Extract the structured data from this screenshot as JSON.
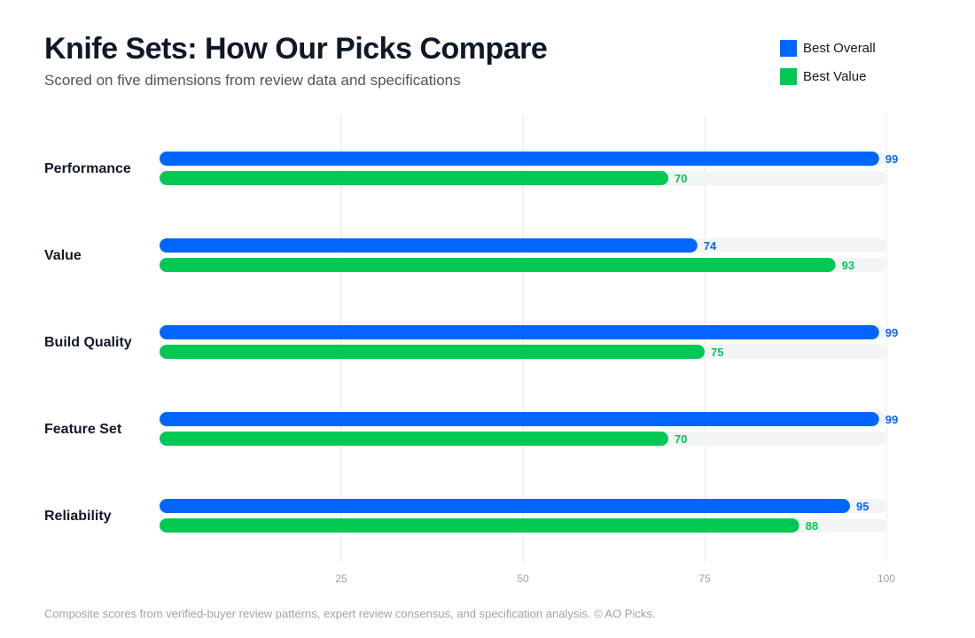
{
  "title": "Knife Sets: How Our Picks Compare",
  "subtitle": "Scored on five dimensions from review data and specifications",
  "footnote": "Composite scores from verified-buyer review patterns, expert review consensus, and specification analysis. © AO Picks.",
  "colors": {
    "best_overall": "#0066ff",
    "best_value": "#00c853",
    "track": "#f3f4f6",
    "grid": "#e5e7eb",
    "tick_text": "#9ca3af"
  },
  "legend": [
    {
      "label": "Best Overall",
      "color": "#0066ff"
    },
    {
      "label": "Best Value",
      "color": "#00c853"
    }
  ],
  "chart_data": {
    "type": "bar",
    "orientation": "horizontal",
    "categories": [
      "Performance",
      "Value",
      "Build Quality",
      "Feature Set",
      "Reliability"
    ],
    "series": [
      {
        "name": "Best Overall",
        "color": "#0066ff",
        "values": [
          99,
          74,
          99,
          99,
          95
        ]
      },
      {
        "name": "Best Value",
        "color": "#00c853",
        "values": [
          70,
          93,
          75,
          70,
          88
        ]
      }
    ],
    "xlim": [
      0,
      100
    ],
    "xticks": [
      25,
      50,
      75,
      100
    ],
    "grid": true,
    "legend_position": "top-right",
    "data_labels": true
  }
}
